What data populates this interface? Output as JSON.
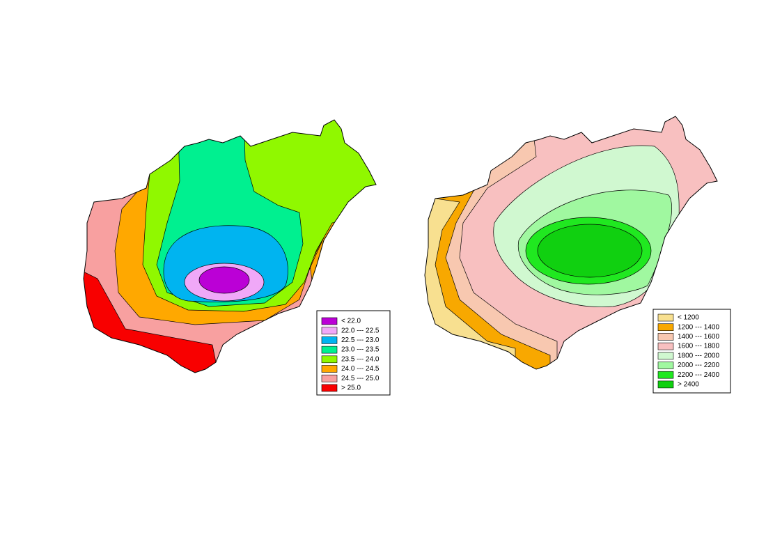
{
  "maps": [
    {
      "legend": [
        {
          "label": "< 22.0",
          "color": "#bb00d6"
        },
        {
          "label": "22.0 --- 22.5",
          "color": "#f0a8f8"
        },
        {
          "label": "22.5 --- 23.0",
          "color": "#00b4f0"
        },
        {
          "label": "23.0 --- 23.5",
          "color": "#00f090"
        },
        {
          "label": "23.5 --- 24.0",
          "color": "#90f800"
        },
        {
          "label": "24.0 --- 24.5",
          "color": "#ffa800"
        },
        {
          "label": "24.5 --- 25.0",
          "color": "#f8a0a0"
        },
        {
          "label": "> 25.0",
          "color": "#f80000"
        }
      ]
    },
    {
      "legend": [
        {
          "label": "< 1200",
          "color": "#f8e090"
        },
        {
          "label": "1200 --- 1400",
          "color": "#f8a800"
        },
        {
          "label": "1400 --- 1600",
          "color": "#f8c8b0"
        },
        {
          "label": "1600 --- 1800",
          "color": "#f8c0c0"
        },
        {
          "label": "1800 --- 2000",
          "color": "#d0f8d0"
        },
        {
          "label": "2000 --- 2200",
          "color": "#a0f8a0"
        },
        {
          "label": "2200 --- 2400",
          "color": "#20e820"
        },
        {
          "label": "> 2400",
          "color": "#10d010"
        }
      ]
    }
  ]
}
